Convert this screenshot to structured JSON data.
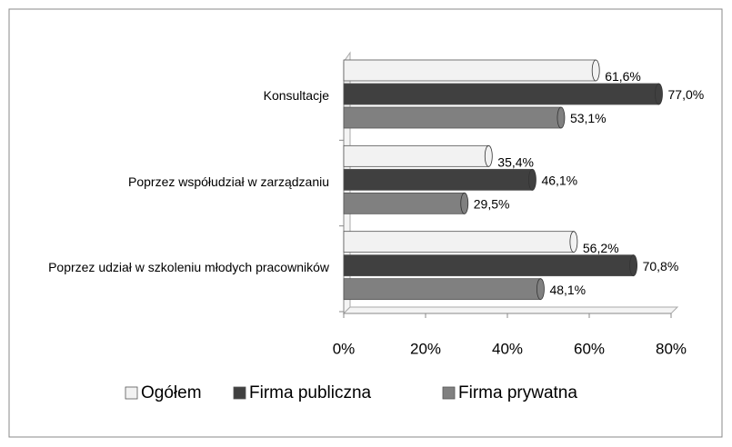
{
  "chart_data": {
    "type": "bar",
    "orientation": "horizontal",
    "categories": [
      "Konsultacje",
      "Poprzez współudział w zarządzaniu",
      "Poprzez udział w szkoleniu młodych pracowników"
    ],
    "series": [
      {
        "name": "Ogółem",
        "color": "#f2f2f2",
        "values": [
          61.6,
          35.4,
          56.2
        ],
        "value_labels": [
          "61,6%",
          "35,4%",
          "56,2%"
        ]
      },
      {
        "name": "Firma publiczna",
        "color": "#404040",
        "values": [
          77.0,
          46.1,
          70.8
        ],
        "value_labels": [
          "77,0%",
          "46,1%",
          "70,8%"
        ]
      },
      {
        "name": "Firma prywatna",
        "color": "#808080",
        "values": [
          53.1,
          29.5,
          48.1
        ],
        "value_labels": [
          "53,1%",
          "29,5%",
          "48,1%"
        ]
      }
    ],
    "xlim": [
      0,
      80
    ],
    "xticks": [
      {
        "value": 0,
        "label": "0%"
      },
      {
        "value": 20,
        "label": "20%"
      },
      {
        "value": 40,
        "label": "40%"
      },
      {
        "value": 60,
        "label": "60%"
      },
      {
        "value": 80,
        "label": "80%"
      }
    ],
    "legend": "bottom"
  }
}
